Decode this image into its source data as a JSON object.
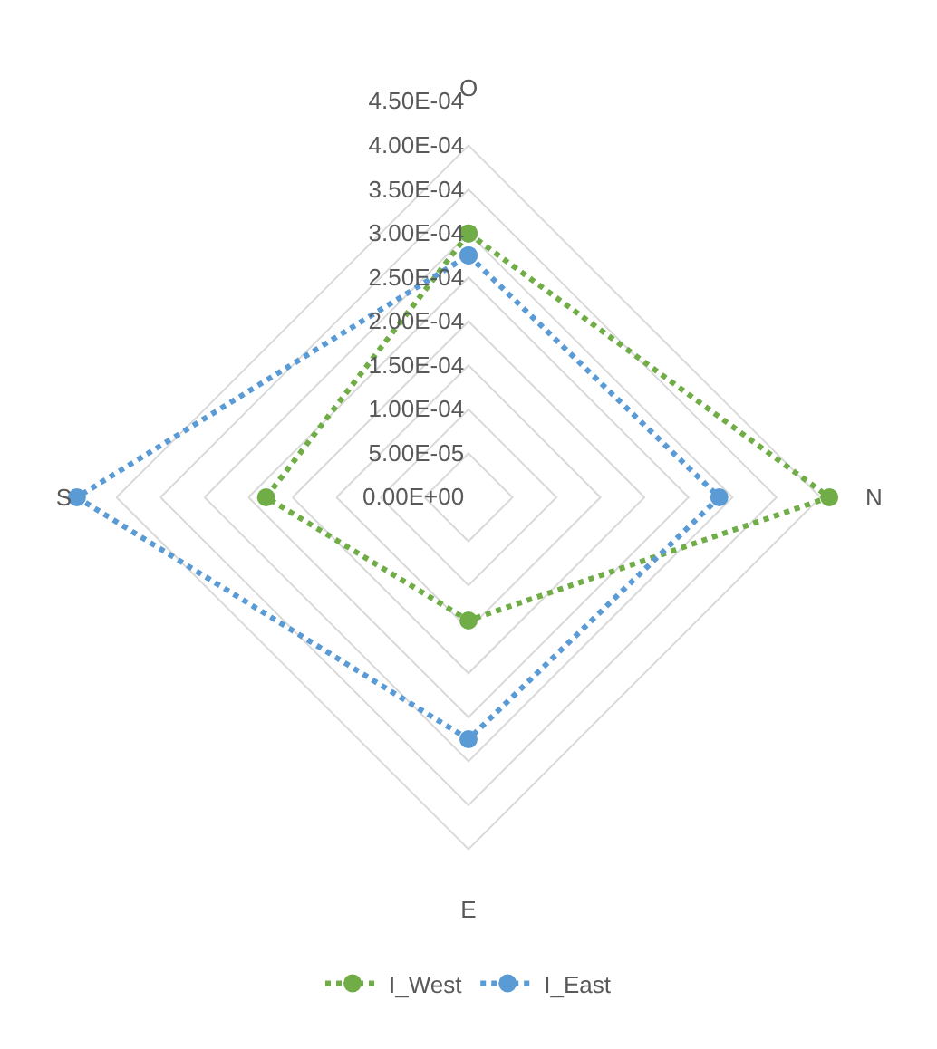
{
  "chart_data": {
    "type": "radar",
    "categories": [
      "O",
      "N",
      "E",
      "S"
    ],
    "series": [
      {
        "name": "I_West",
        "color": "#70ad47",
        "values": [
          0.0003,
          0.00041,
          0.00014,
          0.00023
        ]
      },
      {
        "name": "I_East",
        "color": "#5b9bd5",
        "values": [
          0.000275,
          0.000285,
          0.000275,
          0.000445
        ]
      }
    ],
    "ylim": [
      0,
      0.00045
    ],
    "yticks": [
      {
        "value": 0,
        "label": "0.00E+00"
      },
      {
        "value": 5e-05,
        "label": "5.00E-05"
      },
      {
        "value": 0.0001,
        "label": "1.00E-04"
      },
      {
        "value": 0.00015,
        "label": "1.50E-04"
      },
      {
        "value": 0.0002,
        "label": "2.00E-04"
      },
      {
        "value": 0.00025,
        "label": "2.50E-04"
      },
      {
        "value": 0.0003,
        "label": "3.00E-04"
      },
      {
        "value": 0.00035,
        "label": "3.50E-04"
      },
      {
        "value": 0.0004,
        "label": "4.00E-04"
      },
      {
        "value": 0.00045,
        "label": "4.50E-04"
      }
    ],
    "grid": true,
    "legend": "bottom",
    "marker": "circle",
    "line_style": "dotted"
  }
}
